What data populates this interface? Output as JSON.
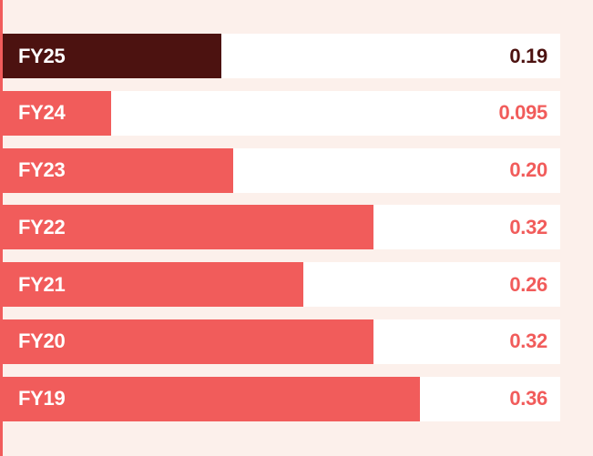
{
  "chart_data": {
    "type": "bar",
    "orientation": "horizontal",
    "categories": [
      "FY25",
      "FY24",
      "FY23",
      "FY22",
      "FY21",
      "FY20",
      "FY19"
    ],
    "values": [
      0.19,
      0.095,
      0.2,
      0.32,
      0.26,
      0.32,
      0.36
    ],
    "value_labels": [
      "0.19",
      "0.095",
      "0.20",
      "0.32",
      "0.26",
      "0.32",
      "0.36"
    ],
    "xlim": [
      0,
      0.48
    ],
    "grid": false,
    "legend": false,
    "highlight_category": "FY25",
    "highlight_index": 0,
    "value_label_position": "right-aligned-inside-track",
    "category_label_position": "inside-bar-left"
  },
  "colors": {
    "background": "#FCF0EB",
    "bar": "#F15C5B",
    "bar_highlight": "#4C1210",
    "track": "#FFFFFF",
    "label_text": "#FFFFFF",
    "value_text": "#F15C5B",
    "value_text_highlight": "#4C1210",
    "accent_stripe": "#F15C5B"
  }
}
